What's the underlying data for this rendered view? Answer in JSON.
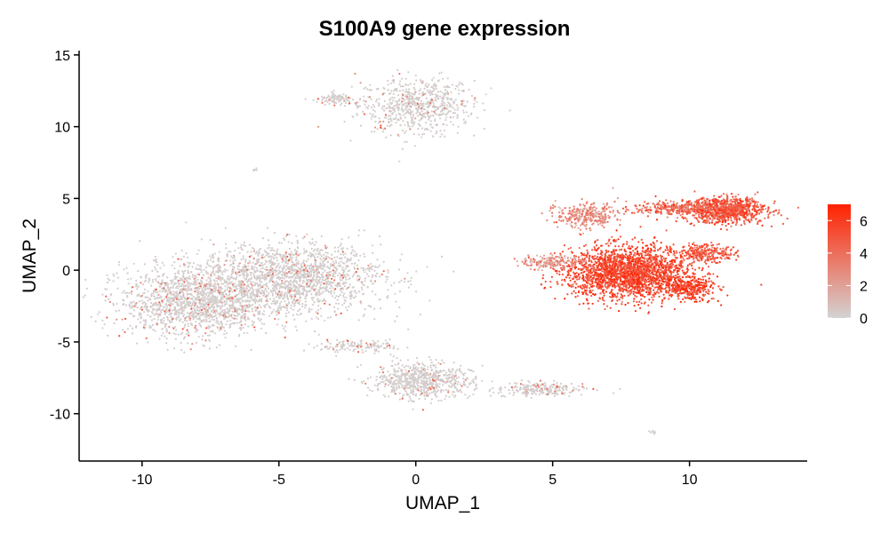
{
  "chart_data": {
    "type": "scatter",
    "title": "S100A9 gene expression",
    "xlabel": "UMAP_1",
    "ylabel": "UMAP_2",
    "xlim": [
      -12.3,
      14.3
    ],
    "ylim": [
      -13.3,
      15.3
    ],
    "x_ticks": [
      -10,
      -5,
      0,
      5,
      10
    ],
    "y_ticks": [
      15,
      10,
      5,
      0,
      -5,
      -10
    ],
    "x_tick_labels": [
      "-10",
      "-5",
      "0",
      "5",
      "10"
    ],
    "y_tick_labels": [
      "15",
      "10",
      "5",
      "0",
      "-5",
      "-10"
    ],
    "grid": false,
    "legend": {
      "type": "colorbar",
      "placement": "right",
      "range": [
        0,
        7
      ],
      "ticks": [
        0,
        2,
        4,
        6
      ],
      "tick_labels": [
        "0",
        "2",
        "4",
        "6"
      ],
      "low_color": "#d3d3d3",
      "high_color": "#ff2200"
    },
    "clusters": [
      {
        "name": "top-right-blob",
        "center": [
          0.0,
          11.5
        ],
        "spread": [
          1.4,
          1.3
        ],
        "points": 700,
        "expr_mean": 0.3
      },
      {
        "name": "top-left-small",
        "center": [
          -2.9,
          11.9
        ],
        "spread": [
          0.4,
          0.25
        ],
        "points": 90,
        "expr_mean": 0.3
      },
      {
        "name": "tiny-top",
        "center": [
          -5.9,
          7.0
        ],
        "spread": [
          0.1,
          0.1
        ],
        "points": 6,
        "expr_mean": 0.3
      },
      {
        "name": "large-left",
        "center": [
          -8.0,
          -2.2
        ],
        "spread": [
          1.8,
          1.6
        ],
        "points": 1600,
        "expr_mean": 0.35
      },
      {
        "name": "large-mid",
        "center": [
          -4.5,
          -0.5
        ],
        "spread": [
          2.2,
          1.6
        ],
        "points": 1700,
        "expr_mean": 0.35
      },
      {
        "name": "bottom-mid",
        "center": [
          0.2,
          -7.7
        ],
        "spread": [
          1.2,
          0.8
        ],
        "points": 700,
        "expr_mean": 0.45
      },
      {
        "name": "bottom-stream",
        "center": [
          -2.2,
          -5.3
        ],
        "spread": [
          0.9,
          0.3
        ],
        "points": 140,
        "expr_mean": 0.5
      },
      {
        "name": "bottom-tail",
        "center": [
          4.5,
          -8.3
        ],
        "spread": [
          1.1,
          0.35
        ],
        "points": 220,
        "expr_mean": 0.7
      },
      {
        "name": "tiny-bottom",
        "center": [
          8.7,
          -11.3
        ],
        "spread": [
          0.12,
          0.08
        ],
        "points": 8,
        "expr_mean": 0.5
      },
      {
        "name": "myeloid-core",
        "center": [
          7.8,
          -0.2
        ],
        "spread": [
          1.5,
          1.2
        ],
        "points": 2200,
        "expr_mean": 5.5
      },
      {
        "name": "myeloid-upper-left",
        "center": [
          6.2,
          3.8
        ],
        "spread": [
          0.7,
          0.6
        ],
        "points": 300,
        "expr_mean": 2.8
      },
      {
        "name": "myeloid-left-arm",
        "center": [
          5.0,
          0.6
        ],
        "spread": [
          0.8,
          0.3
        ],
        "points": 180,
        "expr_mean": 2.5
      },
      {
        "name": "myeloid-right-top",
        "center": [
          11.3,
          4.2
        ],
        "spread": [
          1.0,
          0.6
        ],
        "points": 900,
        "expr_mean": 5.0
      },
      {
        "name": "myeloid-bridge",
        "center": [
          9.5,
          4.3
        ],
        "spread": [
          1.2,
          0.3
        ],
        "points": 300,
        "expr_mean": 4.2
      },
      {
        "name": "myeloid-right-arm",
        "center": [
          10.0,
          -1.3
        ],
        "spread": [
          0.6,
          0.5
        ],
        "points": 300,
        "expr_mean": 5.8
      },
      {
        "name": "myeloid-right-mid",
        "center": [
          10.6,
          1.2
        ],
        "spread": [
          0.7,
          0.4
        ],
        "points": 250,
        "expr_mean": 5.0
      }
    ]
  }
}
